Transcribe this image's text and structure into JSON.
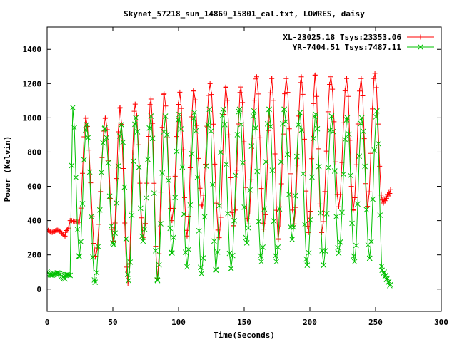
{
  "chart_data": {
    "type": "line",
    "title": "Skynet_57218_sun_14869_15801_cal.txt, LOWRES, daisy",
    "xlabel": "Time(Seconds)",
    "ylabel": "Power (Kelvin)",
    "xlim": [
      0,
      300
    ],
    "ylim": [
      -130,
      1530
    ],
    "xticks": [
      0,
      50,
      100,
      150,
      200,
      250,
      300
    ],
    "yticks": [
      0,
      200,
      400,
      600,
      800,
      1000,
      1200,
      1400
    ],
    "grid": false,
    "legend_position": "top-right",
    "sample_step": 1.2,
    "series": [
      {
        "name": "XL-23025.18 Tsys:23353.06",
        "color": "#ff0000",
        "marker": "plus",
        "start": [
          [
            0,
            350
          ],
          [
            14,
            320
          ],
          [
            17,
            360
          ]
        ],
        "cycles": [
          [
            17.5,
            400
          ],
          [
            24.5,
            390
          ],
          [
            29.5,
            1000
          ],
          [
            37,
            190
          ],
          [
            44.5,
            1000
          ],
          [
            50.5,
            280
          ],
          [
            55.5,
            1060
          ],
          [
            61.5,
            30
          ],
          [
            67,
            1080
          ],
          [
            73.5,
            290
          ],
          [
            79,
            1110
          ],
          [
            84,
            60
          ],
          [
            89,
            1140
          ],
          [
            95,
            400
          ],
          [
            101,
            1150
          ],
          [
            106.5,
            310
          ],
          [
            111.5,
            1160
          ],
          [
            118,
            480
          ],
          [
            124,
            1200
          ],
          [
            131,
            300
          ],
          [
            136,
            1180
          ],
          [
            142,
            370
          ],
          [
            147.5,
            1180
          ],
          [
            153,
            380
          ],
          [
            159.5,
            1240
          ],
          [
            165,
            350
          ],
          [
            171,
            1230
          ],
          [
            176,
            290
          ],
          [
            182,
            1230
          ],
          [
            188,
            380
          ],
          [
            193.5,
            1240
          ],
          [
            199,
            330
          ],
          [
            204,
            1250
          ],
          [
            209,
            330
          ],
          [
            216,
            1240
          ],
          [
            222,
            480
          ],
          [
            228,
            1230
          ],
          [
            233,
            460
          ],
          [
            239,
            1230
          ],
          [
            244,
            480
          ],
          [
            249.5,
            1260
          ],
          [
            255,
            520
          ]
        ],
        "end": [
          [
            256,
            510
          ],
          [
            262,
            580
          ]
        ]
      },
      {
        "name": "YR-7404.51 Tsys:7487.11",
        "color": "#00c000",
        "marker": "cross",
        "start": [
          [
            0,
            100
          ],
          [
            14,
            70
          ],
          [
            17,
            80
          ]
        ],
        "cycles": [
          [
            17.5,
            80
          ],
          [
            19.5,
            1060
          ],
          [
            24.5,
            190
          ],
          [
            30,
            960
          ],
          [
            36.5,
            40
          ],
          [
            44,
            940
          ],
          [
            50.5,
            260
          ],
          [
            56.5,
            960
          ],
          [
            62,
            50
          ],
          [
            67.5,
            1000
          ],
          [
            73,
            280
          ],
          [
            79,
            1010
          ],
          [
            84,
            50
          ],
          [
            90,
            1010
          ],
          [
            95,
            210
          ],
          [
            100.5,
            1020
          ],
          [
            106.5,
            130
          ],
          [
            112,
            1030
          ],
          [
            117.5,
            90
          ],
          [
            123.5,
            1050
          ],
          [
            128.5,
            110
          ],
          [
            134,
            1050
          ],
          [
            140,
            120
          ],
          [
            146.5,
            1050
          ],
          [
            152,
            270
          ],
          [
            157.5,
            1040
          ],
          [
            163,
            160
          ],
          [
            169,
            1050
          ],
          [
            174.5,
            160
          ],
          [
            180.5,
            1050
          ],
          [
            186.5,
            290
          ],
          [
            192.5,
            1030
          ],
          [
            198,
            140
          ],
          [
            204.5,
            1020
          ],
          [
            210.5,
            140
          ],
          [
            216.5,
            1010
          ],
          [
            222,
            210
          ],
          [
            228.5,
            1000
          ],
          [
            234,
            160
          ],
          [
            239.5,
            1000
          ],
          [
            245.5,
            180
          ],
          [
            251,
            1040
          ],
          [
            255,
            110
          ]
        ],
        "end": [
          [
            256,
            100
          ],
          [
            262,
            10
          ]
        ]
      }
    ]
  }
}
